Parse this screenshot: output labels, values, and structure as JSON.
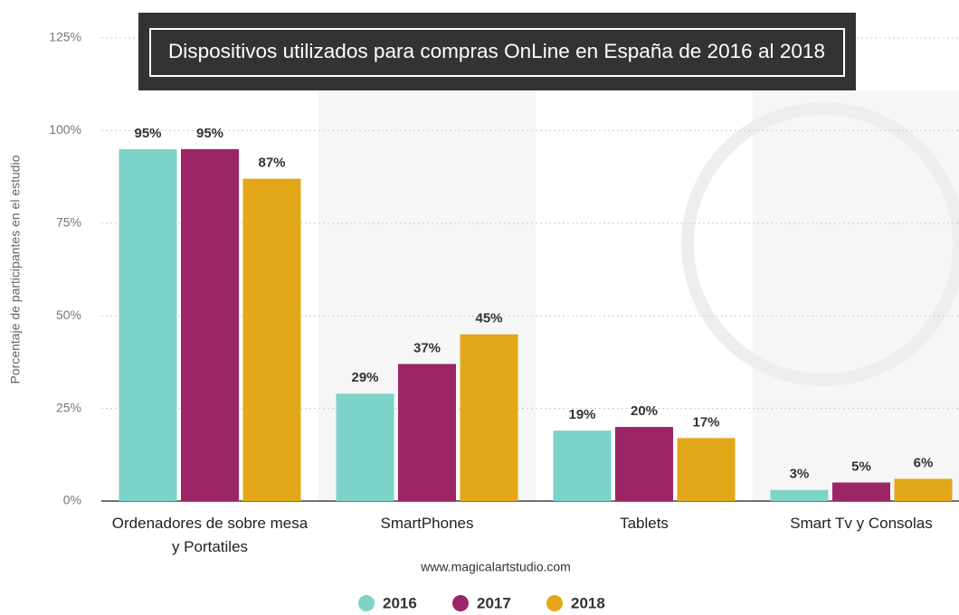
{
  "chart_data": {
    "type": "bar",
    "title": "Dispositivos utilizados para compras OnLine en España de 2016 al 2018",
    "y_label": "Porcentaje de participantes en el estudio",
    "source": "www.magicalartstudio.com",
    "categories": [
      "Ordenadores de sobre mesa\ny Portatiles",
      "SmartPhones",
      "Tablets",
      "Smart Tv y Consolas"
    ],
    "series": [
      {
        "name": "2016",
        "color": "#7dd3c7",
        "values": [
          95,
          29,
          19,
          3
        ],
        "value_labels": [
          "95%",
          "29%",
          "19%",
          "3%"
        ]
      },
      {
        "name": "2017",
        "color": "#9b2566",
        "values": [
          95,
          37,
          20,
          5
        ],
        "value_labels": [
          "95%",
          "37%",
          "20%",
          "5%"
        ]
      },
      {
        "name": "2018",
        "color": "#e3a71a",
        "values": [
          87,
          45,
          17,
          6
        ],
        "value_labels": [
          "87%",
          "45%",
          "17%",
          "6%"
        ]
      }
    ],
    "ylim": [
      0,
      125
    ],
    "yticks": [
      {
        "value": 0,
        "label": "0%"
      },
      {
        "value": 25,
        "label": "25%"
      },
      {
        "value": 50,
        "label": "50%"
      },
      {
        "value": 75,
        "label": "75%"
      },
      {
        "value": 100,
        "label": "100%"
      },
      {
        "value": 125,
        "label": "125%"
      }
    ],
    "grid": true,
    "legend": "bottom"
  }
}
